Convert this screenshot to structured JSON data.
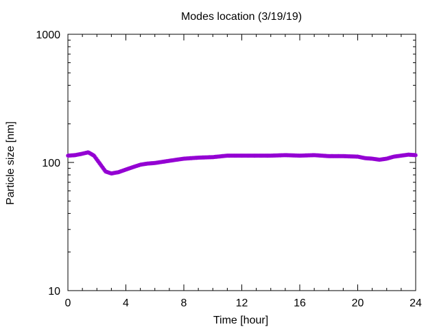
{
  "chart_data": {
    "type": "line",
    "title": "Modes location (3/19/19)",
    "xlabel": "Time [hour]",
    "ylabel": "Particle size [nm]",
    "xlim": [
      0,
      24
    ],
    "ylim": [
      10,
      1000
    ],
    "yscale": "log",
    "grid": false,
    "legend": "none",
    "x_ticks": [
      "0",
      "4",
      "8",
      "12",
      "16",
      "20",
      "24"
    ],
    "y_ticks": [
      "10",
      "100",
      "1000"
    ],
    "series": [
      {
        "color": "#9400d3",
        "marker": "star",
        "x": [
          0,
          0.5,
          1.0,
          1.4,
          1.8,
          2.2,
          2.6,
          3.0,
          3.5,
          4.0,
          4.5,
          5.0,
          5.5,
          6.0,
          6.5,
          7.0,
          7.5,
          8.0,
          9.0,
          10.0,
          11.0,
          12.0,
          13.0,
          14.0,
          15.0,
          16.0,
          17.0,
          18.0,
          19.0,
          20.0,
          20.5,
          21.0,
          21.5,
          22.0,
          22.5,
          23.0,
          23.5,
          24.0
        ],
        "y": [
          113,
          114,
          117,
          120,
          113,
          98,
          85,
          82,
          84,
          88,
          92,
          96,
          98,
          99,
          101,
          103,
          105,
          107,
          109,
          110,
          113,
          113,
          113,
          113,
          114,
          113,
          114,
          112,
          112,
          111,
          108,
          107,
          105,
          107,
          111,
          113,
          115,
          114
        ]
      }
    ]
  },
  "colors": {
    "series": "#9400d3",
    "axes": "#000000",
    "background": "#ffffff"
  }
}
